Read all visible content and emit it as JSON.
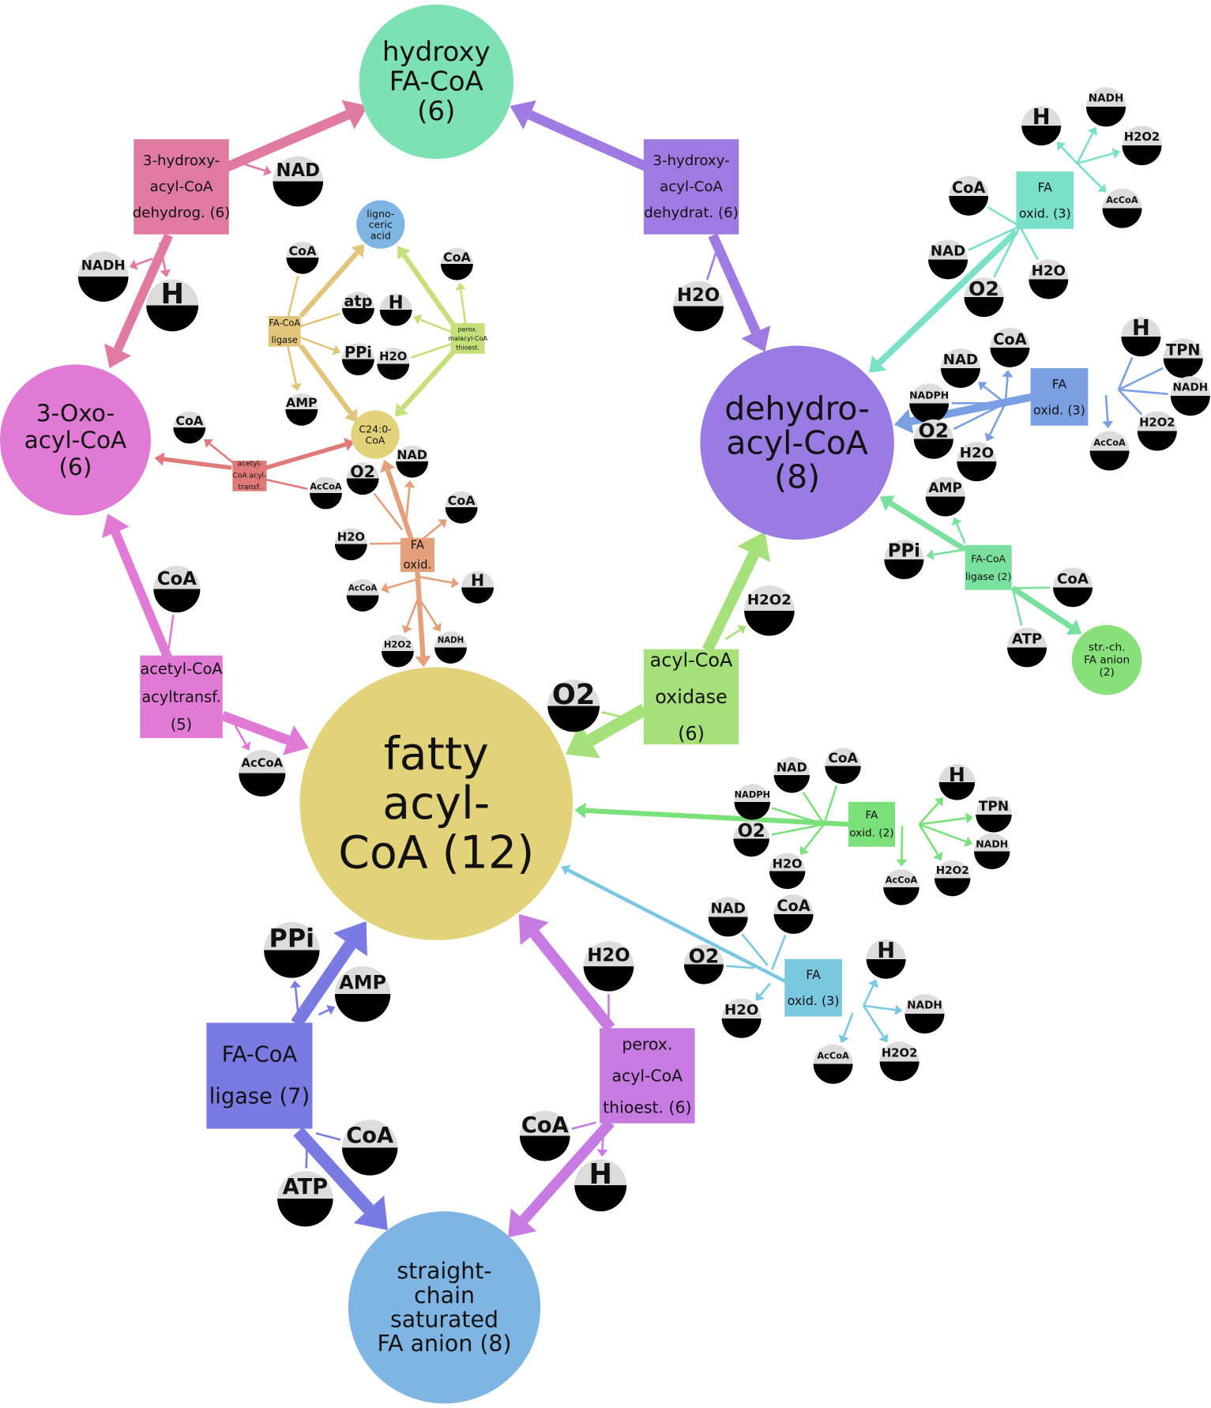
{
  "nodes": [
    {
      "id": "hfa",
      "kind": "met",
      "lines": [
        "hydroxy",
        "FA-CoA",
        "(6)"
      ],
      "color": "#7ee0b5"
    },
    {
      "id": "dac",
      "kind": "met",
      "lines": [
        "dehydro-",
        "acyl-CoA",
        "(8)"
      ],
      "color": "#9a7ae3"
    },
    {
      "id": "oxo",
      "kind": "met",
      "lines": [
        "3-Oxo-",
        "acyl-CoA",
        "(6)"
      ],
      "color": "#e07ad5"
    },
    {
      "id": "fac",
      "kind": "met",
      "lines": [
        "fatty",
        "acyl-",
        "CoA (12)"
      ],
      "color": "#e2d27a"
    },
    {
      "id": "scs",
      "kind": "met",
      "lines": [
        "straight-",
        "chain",
        "saturated",
        "FA anion (8)"
      ],
      "color": "#7fb5e3"
    },
    {
      "id": "lig",
      "kind": "met",
      "lines": [
        "ligno-",
        "ceric",
        "acid"
      ],
      "color": "#7fb5e3"
    },
    {
      "id": "c24",
      "kind": "met",
      "lines": [
        "C24:0-",
        "CoA"
      ],
      "color": "#e2d27a"
    },
    {
      "id": "sfa",
      "kind": "met",
      "lines": [
        "str.-ch.",
        "FA anion",
        "(2)"
      ],
      "color": "#87e07a"
    },
    {
      "id": "hdg",
      "kind": "rxn",
      "lines": [
        "3-hydroxy-",
        "acyl-CoA",
        "dehydrog. (6)"
      ],
      "color": "#e07aa0"
    },
    {
      "id": "hdt",
      "kind": "rxn",
      "lines": [
        "3-hydroxy-",
        "acyl-CoA",
        "dehydrat. (6)"
      ],
      "color": "#a07ae3"
    },
    {
      "id": "act",
      "kind": "rxn",
      "lines": [
        "acetyl-CoA",
        "acyltransf.",
        "(5)"
      ],
      "color": "#e07ad5"
    },
    {
      "id": "aco",
      "kind": "rxn",
      "lines": [
        "acyl-CoA",
        "oxidase",
        "(6)"
      ],
      "color": "#a5e07a"
    },
    {
      "id": "fcl",
      "kind": "rxn",
      "lines": [
        "FA-CoA",
        "ligase (7)"
      ],
      "color": "#7a7ae3"
    },
    {
      "id": "pat",
      "kind": "rxn",
      "lines": [
        "perox.",
        "acyl-CoA",
        "thioest. (6)"
      ],
      "color": "#c87ae3"
    },
    {
      "id": "fcs",
      "kind": "rxn",
      "lines": [
        "FA-CoA",
        "ligase"
      ],
      "color": "#e2c57a"
    },
    {
      "id": "pmt",
      "kind": "rxn",
      "lines": [
        "perox.",
        "malacyl-CoA",
        "thioest."
      ],
      "color": "#c5e07a"
    },
    {
      "id": "aat",
      "kind": "rxn",
      "lines": [
        "acetyl-",
        "CoA acyl-",
        "transf."
      ],
      "color": "#e07a7a"
    },
    {
      "id": "fxs",
      "kind": "rxn",
      "lines": [
        "FA",
        "oxid."
      ],
      "color": "#e3a07a"
    },
    {
      "id": "fx3a",
      "kind": "rxn",
      "lines": [
        "FA",
        "oxid. (3)"
      ],
      "color": "#7ae0c8"
    },
    {
      "id": "fx3b",
      "kind": "rxn",
      "lines": [
        "FA",
        "oxid. (3)"
      ],
      "color": "#7aa0e3"
    },
    {
      "id": "fl2",
      "kind": "rxn",
      "lines": [
        "FA-CoA",
        "ligase (2)"
      ],
      "color": "#7ae0a0"
    },
    {
      "id": "fx2",
      "kind": "rxn",
      "lines": [
        "FA",
        "oxid. (2)"
      ],
      "color": "#7ae07a"
    },
    {
      "id": "fx3c",
      "kind": "rxn",
      "lines": [
        "FA",
        "oxid. (3)"
      ],
      "color": "#7ac8e0"
    }
  ],
  "cofactors": [
    {
      "id": "c1",
      "label": "NAD"
    },
    {
      "id": "c2",
      "label": "NADH"
    },
    {
      "id": "c3",
      "label": "H"
    },
    {
      "id": "c4",
      "label": "H2O"
    },
    {
      "id": "c5",
      "label": "CoA"
    },
    {
      "id": "c6",
      "label": "AcCoA"
    },
    {
      "id": "c7",
      "label": "O2"
    },
    {
      "id": "c8",
      "label": "H2O2"
    },
    {
      "id": "c9",
      "label": "PPi"
    },
    {
      "id": "c10",
      "label": "AMP"
    },
    {
      "id": "c11",
      "label": "CoA"
    },
    {
      "id": "c12",
      "label": "ATP"
    },
    {
      "id": "c13",
      "label": "H2O"
    },
    {
      "id": "c14",
      "label": "CoA"
    },
    {
      "id": "c15",
      "label": "H"
    },
    {
      "id": "s1",
      "label": "CoA"
    },
    {
      "id": "s2",
      "label": "atp"
    },
    {
      "id": "s3",
      "label": "PPi"
    },
    {
      "id": "s4",
      "label": "AMP"
    },
    {
      "id": "s5",
      "label": "CoA"
    },
    {
      "id": "s6",
      "label": "H"
    },
    {
      "id": "s7",
      "label": "H2O"
    },
    {
      "id": "s8",
      "label": "CoA"
    },
    {
      "id": "s9",
      "label": "AcCoA"
    },
    {
      "id": "s10",
      "label": "O2"
    },
    {
      "id": "s11",
      "label": "NAD"
    },
    {
      "id": "s12",
      "label": "CoA"
    },
    {
      "id": "s13",
      "label": "H2O"
    },
    {
      "id": "s14",
      "label": "H"
    },
    {
      "id": "s15",
      "label": "AcCoA"
    },
    {
      "id": "s16",
      "label": "H2O2"
    },
    {
      "id": "s17",
      "label": "NADH"
    },
    {
      "id": "a1",
      "label": "H"
    },
    {
      "id": "a2",
      "label": "NADH"
    },
    {
      "id": "a3",
      "label": "H2O2"
    },
    {
      "id": "a4",
      "label": "CoA"
    },
    {
      "id": "a5",
      "label": "AcCoA"
    },
    {
      "id": "a6",
      "label": "NAD"
    },
    {
      "id": "a7",
      "label": "O2"
    },
    {
      "id": "a8",
      "label": "H2O"
    },
    {
      "id": "b1",
      "label": "NAD"
    },
    {
      "id": "b2",
      "label": "CoA"
    },
    {
      "id": "b3",
      "label": "H"
    },
    {
      "id": "b4",
      "label": "TPN"
    },
    {
      "id": "b5",
      "label": "NADPH"
    },
    {
      "id": "b6",
      "label": "NADH"
    },
    {
      "id": "b7",
      "label": "O2"
    },
    {
      "id": "b8",
      "label": "H2O"
    },
    {
      "id": "b9",
      "label": "AcCoA"
    },
    {
      "id": "b10",
      "label": "H2O2"
    },
    {
      "id": "l1",
      "label": "AMP"
    },
    {
      "id": "l2",
      "label": "PPi"
    },
    {
      "id": "l3",
      "label": "CoA"
    },
    {
      "id": "l4",
      "label": "ATP"
    },
    {
      "id": "d1",
      "label": "NAD"
    },
    {
      "id": "d2",
      "label": "CoA"
    },
    {
      "id": "d3",
      "label": "H"
    },
    {
      "id": "d4",
      "label": "NADPH"
    },
    {
      "id": "d5",
      "label": "TPN"
    },
    {
      "id": "d6",
      "label": "O2"
    },
    {
      "id": "d7",
      "label": "NADH"
    },
    {
      "id": "d8",
      "label": "H2O"
    },
    {
      "id": "d9",
      "label": "AcCoA"
    },
    {
      "id": "d10",
      "label": "H2O2"
    },
    {
      "id": "e1",
      "label": "NAD"
    },
    {
      "id": "e2",
      "label": "CoA"
    },
    {
      "id": "e3",
      "label": "H"
    },
    {
      "id": "e4",
      "label": "O2"
    },
    {
      "id": "e5",
      "label": "NADH"
    },
    {
      "id": "e6",
      "label": "H2O"
    },
    {
      "id": "e7",
      "label": "AcCoA"
    },
    {
      "id": "e8",
      "label": "H2O2"
    }
  ]
}
